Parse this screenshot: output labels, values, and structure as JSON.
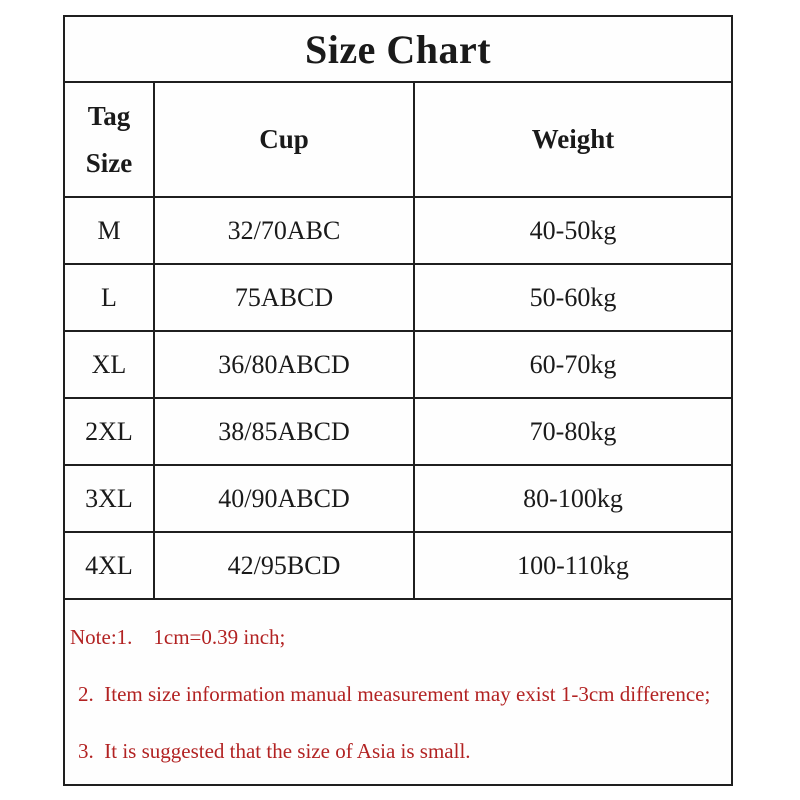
{
  "title": "Size Chart",
  "table": {
    "header": {
      "col1_line1": "Tag",
      "col1_line2": "Size",
      "col2": "Cup",
      "col3": "Weight"
    },
    "rows": [
      {
        "size": "M",
        "cup": "32/70ABC",
        "weight": "40-50kg"
      },
      {
        "size": "L",
        "cup": "75ABCD",
        "weight": "50-60kg"
      },
      {
        "size": "XL",
        "cup": "36/80ABCD",
        "weight": "60-70kg"
      },
      {
        "size": "2XL",
        "cup": "38/85ABCD",
        "weight": "70-80kg"
      },
      {
        "size": "3XL",
        "cup": "40/90ABCD",
        "weight": "80-100kg"
      },
      {
        "size": "4XL",
        "cup": "42/95BCD",
        "weight": "100-110kg"
      }
    ]
  },
  "notes": {
    "line1": "Note:1.    1cm=0.39 inch;",
    "line2": "2.  Item size information manual measurement may exist 1-3cm difference;",
    "line3": "3.  It is suggested that the size of Asia is small."
  },
  "colors": {
    "border": "#1f1f1f",
    "text": "#1a1a1a",
    "note_text": "#b22222",
    "background": "#ffffff"
  },
  "chart_data": {
    "type": "table",
    "title": "Size Chart",
    "columns": [
      "Tag Size",
      "Cup",
      "Weight"
    ],
    "rows": [
      [
        "M",
        "32/70ABC",
        "40-50kg"
      ],
      [
        "L",
        "75ABCD",
        "50-60kg"
      ],
      [
        "XL",
        "36/80ABCD",
        "60-70kg"
      ],
      [
        "2XL",
        "38/85ABCD",
        "70-80kg"
      ],
      [
        "3XL",
        "40/90ABCD",
        "80-100kg"
      ],
      [
        "4XL",
        "42/95BCD",
        "100-110kg"
      ]
    ],
    "notes": [
      "Note:1. 1cm=0.39 inch;",
      "2. Item size information manual measurement may exist 1-3cm difference;",
      "3. It is suggested that the size of Asia is small."
    ]
  }
}
